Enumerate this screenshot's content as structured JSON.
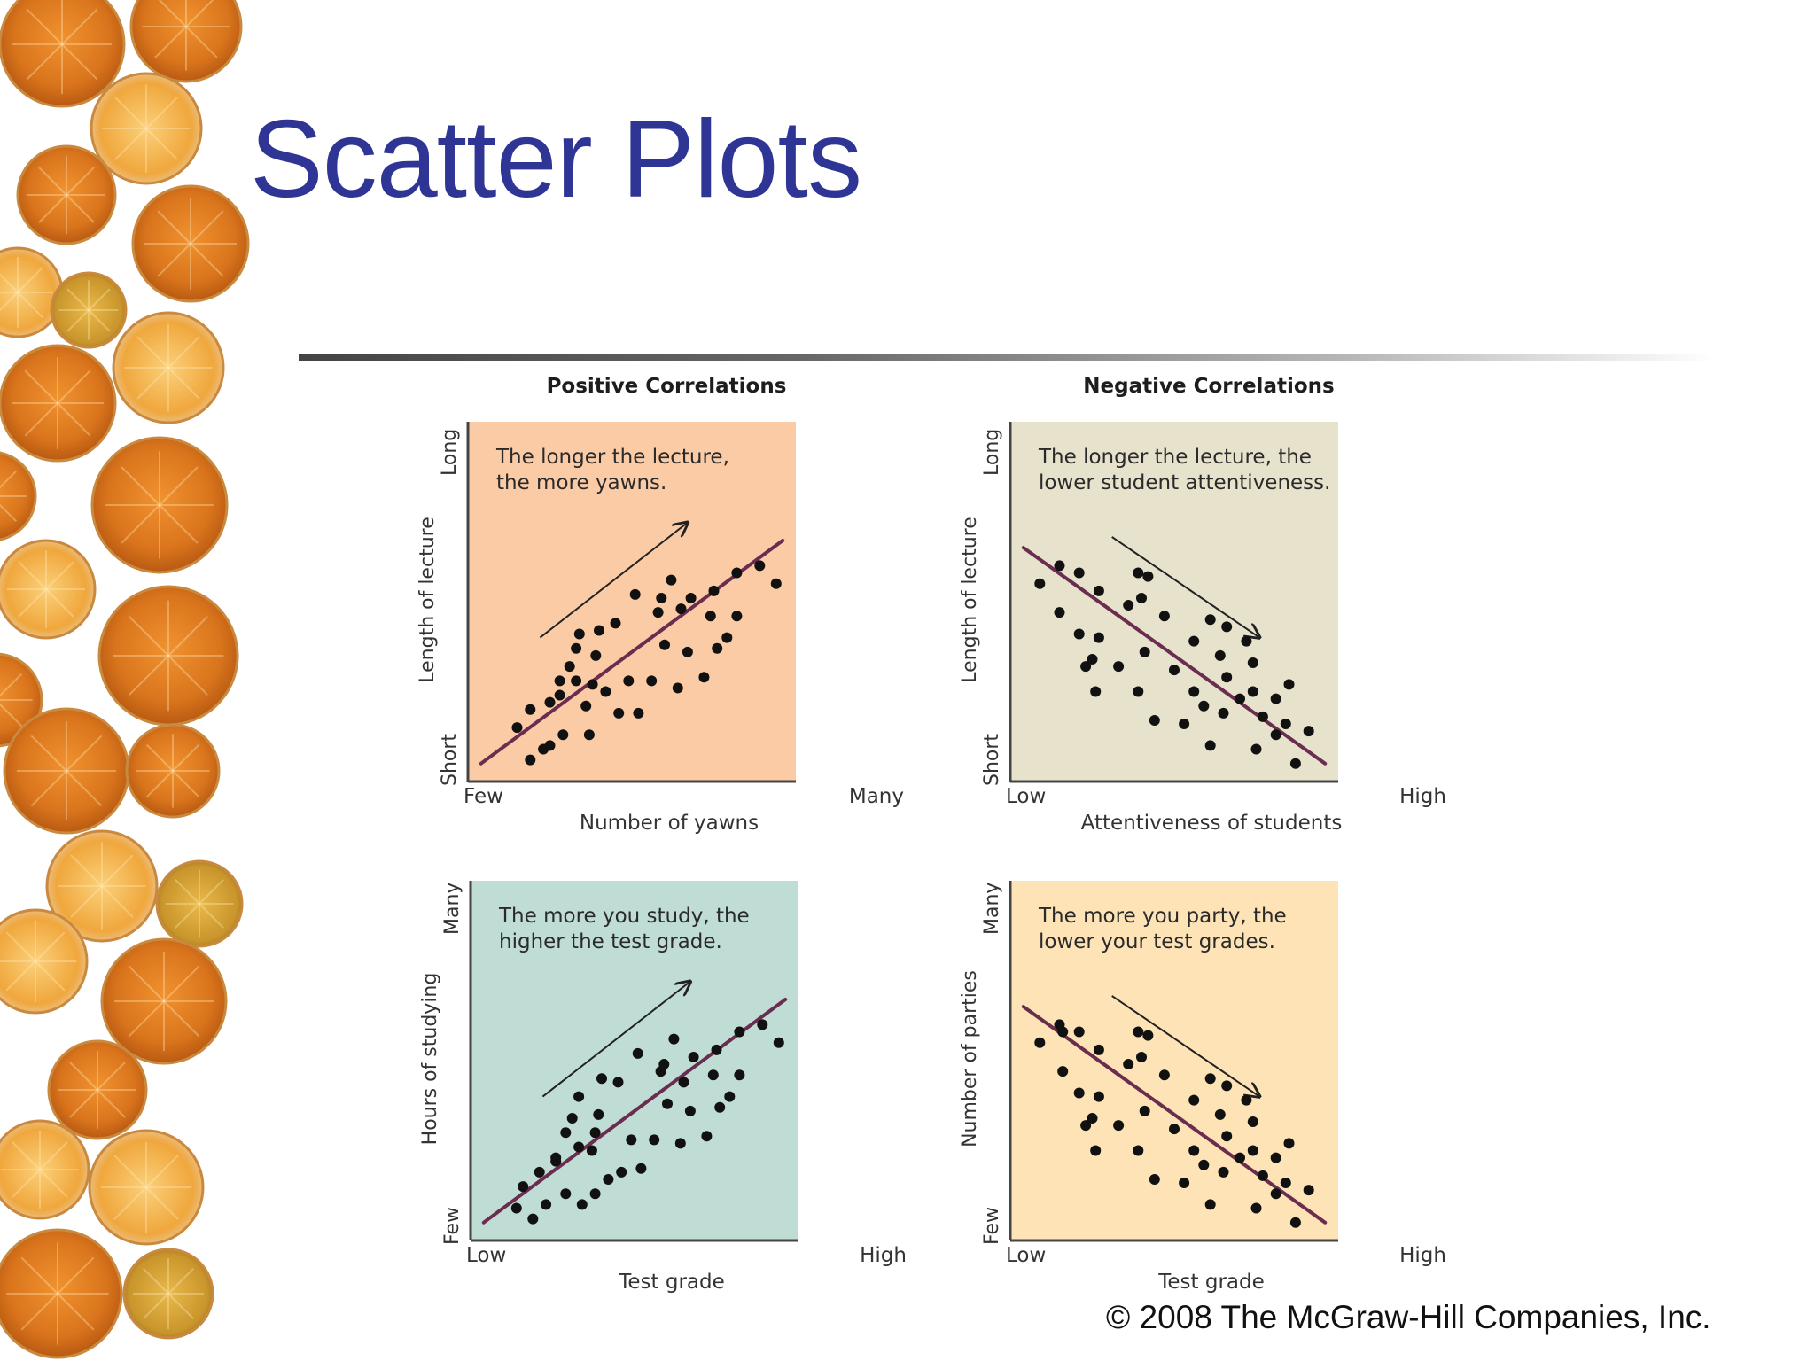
{
  "slide": {
    "title": "Scatter Plots",
    "copyright": "© 2008 The McGraw-Hill Companies, Inc."
  },
  "columns": {
    "left": "Positive Correlations",
    "right": "Negative Correlations"
  },
  "colors": {
    "title": "#2f3595",
    "trend_line": "#6b2d4f",
    "dots": "#111111",
    "panel_yawns": "#fbcba6",
    "panel_attention": "#e7e2cc",
    "panel_study": "#bfddd5",
    "panel_party": "#fde3b6"
  },
  "chart_data": [
    {
      "type": "scatter",
      "id": "yawns",
      "panel_color": "#fbcba6",
      "note": [
        "The longer the lecture,",
        "the more yawns."
      ],
      "xlabel": "Number of yawns",
      "ylabel": "Length of lecture",
      "x_ticks": [
        "Few",
        "Many"
      ],
      "y_ticks": [
        "Short",
        "Long"
      ],
      "xlim": [
        0,
        100
      ],
      "ylim": [
        0,
        100
      ],
      "trend": [
        [
          4,
          5
        ],
        [
          96,
          67
        ]
      ],
      "arrow": [
        [
          22,
          40
        ],
        [
          67,
          72
        ]
      ],
      "points": [
        [
          15,
          15
        ],
        [
          19,
          20
        ],
        [
          19,
          6
        ],
        [
          23,
          9
        ],
        [
          25,
          22
        ],
        [
          25,
          10
        ],
        [
          28,
          24
        ],
        [
          28,
          28
        ],
        [
          29,
          13
        ],
        [
          31,
          32
        ],
        [
          33,
          37
        ],
        [
          33,
          28
        ],
        [
          34,
          41
        ],
        [
          36,
          21
        ],
        [
          37,
          13
        ],
        [
          38,
          27
        ],
        [
          39,
          35
        ],
        [
          40,
          42
        ],
        [
          42,
          25
        ],
        [
          45,
          44
        ],
        [
          46,
          19
        ],
        [
          49,
          28
        ],
        [
          51,
          52
        ],
        [
          52,
          19
        ],
        [
          56,
          28
        ],
        [
          58,
          47
        ],
        [
          59,
          51
        ],
        [
          60,
          38
        ],
        [
          62,
          56
        ],
        [
          64,
          26
        ],
        [
          65,
          48
        ],
        [
          67,
          36
        ],
        [
          68,
          51
        ],
        [
          72,
          29
        ],
        [
          74,
          46
        ],
        [
          75,
          53
        ],
        [
          76,
          37
        ],
        [
          79,
          40
        ],
        [
          82,
          58
        ],
        [
          82,
          46
        ],
        [
          89,
          60
        ],
        [
          94,
          55
        ]
      ]
    },
    {
      "type": "scatter",
      "id": "attention",
      "panel_color": "#e7e2cc",
      "note": [
        "The longer the lecture, the",
        "lower student attentiveness."
      ],
      "xlabel": "Attentiveness of students",
      "ylabel": "Length of lecture",
      "x_ticks": [
        "Low",
        "High"
      ],
      "y_ticks": [
        "Short",
        "Long"
      ],
      "xlim": [
        0,
        100
      ],
      "ylim": [
        0,
        100
      ],
      "trend": [
        [
          4,
          65
        ],
        [
          96,
          5
        ]
      ],
      "arrow": [
        [
          31,
          68
        ],
        [
          76,
          40
        ]
      ],
      "points": [
        [
          9,
          55
        ],
        [
          15,
          60
        ],
        [
          15,
          47
        ],
        [
          21,
          41
        ],
        [
          21,
          58
        ],
        [
          23,
          32
        ],
        [
          25,
          34
        ],
        [
          26,
          25
        ],
        [
          27,
          40
        ],
        [
          27,
          53
        ],
        [
          33,
          32
        ],
        [
          36,
          49
        ],
        [
          39,
          25
        ],
        [
          39,
          58
        ],
        [
          40,
          51
        ],
        [
          41,
          36
        ],
        [
          42,
          57
        ],
        [
          44,
          17
        ],
        [
          47,
          46
        ],
        [
          50,
          31
        ],
        [
          53,
          16
        ],
        [
          56,
          39
        ],
        [
          56,
          25
        ],
        [
          59,
          21
        ],
        [
          61,
          45
        ],
        [
          61,
          10
        ],
        [
          64,
          35
        ],
        [
          65,
          19
        ],
        [
          66,
          29
        ],
        [
          66,
          43
        ],
        [
          70,
          23
        ],
        [
          72,
          39
        ],
        [
          74,
          25
        ],
        [
          74,
          33
        ],
        [
          75,
          9
        ],
        [
          77,
          18
        ],
        [
          81,
          23
        ],
        [
          81,
          13
        ],
        [
          84,
          16
        ],
        [
          85,
          27
        ],
        [
          87,
          5
        ],
        [
          91,
          14
        ]
      ]
    },
    {
      "type": "scatter",
      "id": "study",
      "panel_color": "#bfddd5",
      "note": [
        "The more you study, the",
        "higher the test grade."
      ],
      "xlabel": "Test grade",
      "ylabel": "Hours of studying",
      "x_ticks": [
        "Low",
        "High"
      ],
      "y_ticks": [
        "Few",
        "Many"
      ],
      "xlim": [
        0,
        100
      ],
      "ylim": [
        0,
        100
      ],
      "trend": [
        [
          4,
          5
        ],
        [
          96,
          67
        ]
      ],
      "arrow": [
        [
          22,
          40
        ],
        [
          67,
          72
        ]
      ],
      "points": [
        [
          14,
          9
        ],
        [
          16,
          15
        ],
        [
          19,
          6
        ],
        [
          21,
          19
        ],
        [
          23,
          10
        ],
        [
          26,
          23
        ],
        [
          26,
          22
        ],
        [
          29,
          30
        ],
        [
          29,
          13
        ],
        [
          31,
          34
        ],
        [
          33,
          40
        ],
        [
          33,
          26
        ],
        [
          34,
          10
        ],
        [
          37,
          25
        ],
        [
          38,
          13
        ],
        [
          38,
          30
        ],
        [
          39,
          35
        ],
        [
          40,
          45
        ],
        [
          42,
          17
        ],
        [
          45,
          44
        ],
        [
          46,
          19
        ],
        [
          49,
          28
        ],
        [
          51,
          52
        ],
        [
          52,
          20
        ],
        [
          56,
          28
        ],
        [
          58,
          47
        ],
        [
          59,
          49
        ],
        [
          60,
          38
        ],
        [
          62,
          56
        ],
        [
          64,
          27
        ],
        [
          65,
          44
        ],
        [
          67,
          36
        ],
        [
          68,
          51
        ],
        [
          72,
          29
        ],
        [
          74,
          46
        ],
        [
          75,
          53
        ],
        [
          76,
          37
        ],
        [
          79,
          40
        ],
        [
          82,
          58
        ],
        [
          82,
          46
        ],
        [
          89,
          60
        ],
        [
          94,
          55
        ]
      ]
    },
    {
      "type": "scatter",
      "id": "party",
      "panel_color": "#fde3b6",
      "note": [
        "The more you party, the",
        "lower your test grades."
      ],
      "xlabel": "Test grade",
      "ylabel": "Number of parties",
      "x_ticks": [
        "Low",
        "High"
      ],
      "y_ticks": [
        "Few",
        "Many"
      ],
      "xlim": [
        0,
        100
      ],
      "ylim": [
        0,
        100
      ],
      "trend": [
        [
          4,
          65
        ],
        [
          96,
          5
        ]
      ],
      "arrow": [
        [
          31,
          68
        ],
        [
          76,
          40
        ]
      ],
      "points": [
        [
          9,
          55
        ],
        [
          15,
          60
        ],
        [
          16,
          58
        ],
        [
          16,
          47
        ],
        [
          21,
          41
        ],
        [
          21,
          58
        ],
        [
          23,
          32
        ],
        [
          25,
          34
        ],
        [
          26,
          25
        ],
        [
          27,
          40
        ],
        [
          27,
          53
        ],
        [
          33,
          32
        ],
        [
          36,
          49
        ],
        [
          39,
          25
        ],
        [
          39,
          58
        ],
        [
          40,
          51
        ],
        [
          41,
          36
        ],
        [
          42,
          57
        ],
        [
          44,
          17
        ],
        [
          47,
          46
        ],
        [
          50,
          31
        ],
        [
          53,
          16
        ],
        [
          56,
          39
        ],
        [
          56,
          25
        ],
        [
          59,
          21
        ],
        [
          61,
          45
        ],
        [
          61,
          10
        ],
        [
          64,
          35
        ],
        [
          65,
          19
        ],
        [
          66,
          29
        ],
        [
          66,
          43
        ],
        [
          70,
          23
        ],
        [
          72,
          39
        ],
        [
          74,
          25
        ],
        [
          74,
          33
        ],
        [
          75,
          9
        ],
        [
          77,
          18
        ],
        [
          81,
          23
        ],
        [
          81,
          13
        ],
        [
          84,
          16
        ],
        [
          85,
          27
        ],
        [
          87,
          5
        ],
        [
          91,
          14
        ]
      ]
    }
  ]
}
